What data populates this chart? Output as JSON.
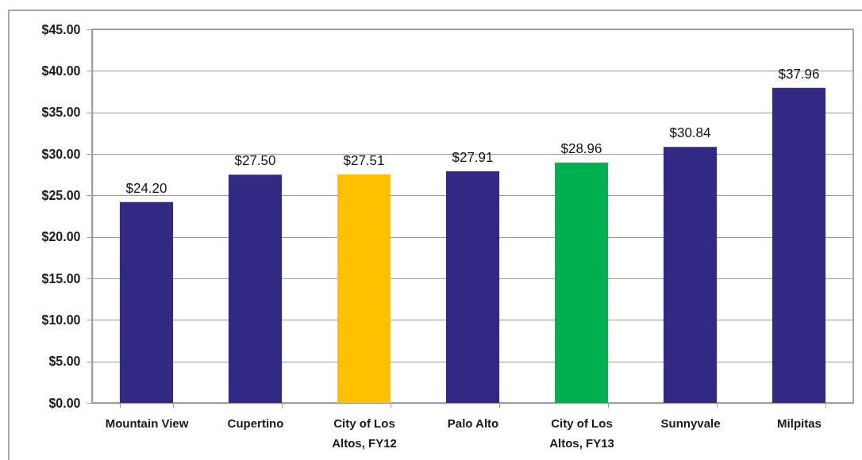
{
  "chart_data": {
    "type": "bar",
    "categories": [
      "Mountain View",
      "Cupertino",
      "City of Los Altos, FY12",
      "Palo Alto",
      "City of Los Altos, FY13",
      "Sunnyvale",
      "Milpitas"
    ],
    "values": [
      24.2,
      27.5,
      27.51,
      27.91,
      28.96,
      30.84,
      37.96
    ],
    "colors": [
      "#312983",
      "#312983",
      "#ffc000",
      "#312983",
      "#00b050",
      "#312983",
      "#312983"
    ],
    "value_labels": [
      "$24.20",
      "$27.50",
      "$27.51",
      "$27.91",
      "$28.96",
      "$30.84",
      "$37.96"
    ],
    "ylim": [
      0,
      45
    ],
    "yticks": [
      {
        "value": 0,
        "label": "$0.00"
      },
      {
        "value": 5,
        "label": "$5.00"
      },
      {
        "value": 10,
        "label": "$10.00"
      },
      {
        "value": 15,
        "label": "$15.00"
      },
      {
        "value": 20,
        "label": "$20.00"
      },
      {
        "value": 25,
        "label": "$25.00"
      },
      {
        "value": 30,
        "label": "$30.00"
      },
      {
        "value": 35,
        "label": "$35.00"
      },
      {
        "value": 40,
        "label": "$40.00"
      },
      {
        "value": 45,
        "label": "$45.00"
      }
    ],
    "grid": "y"
  }
}
